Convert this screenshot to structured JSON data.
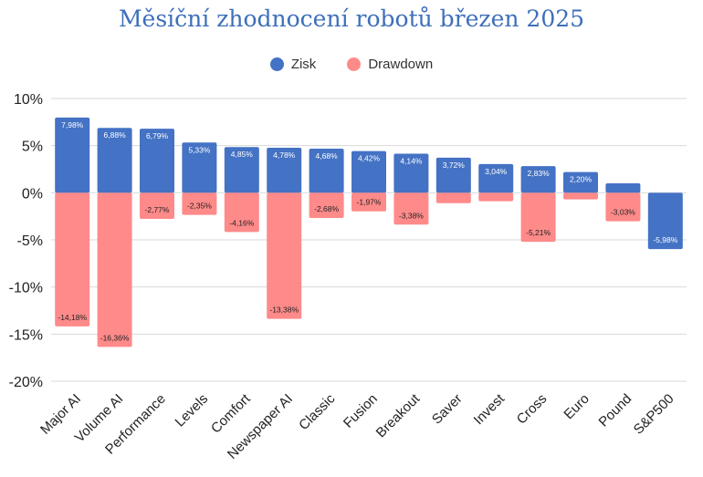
{
  "chart_data": {
    "type": "bar",
    "title": "Měsíční zhodnocení robotů březen 2025",
    "categories": [
      "Major AI",
      "Volume AI",
      "Performance",
      "Levels",
      "Comfort",
      "Newspaper AI",
      "Classic",
      "Fusion",
      "Breakout",
      "Saver",
      "Invest",
      "Cross",
      "Euro",
      "Pound",
      "S&P500"
    ],
    "series": [
      {
        "name": "Zisk",
        "color": "#4472c4",
        "values": [
          7.98,
          6.88,
          6.79,
          5.33,
          4.85,
          4.78,
          4.68,
          4.42,
          4.14,
          3.72,
          3.04,
          2.83,
          2.2,
          1.0,
          -5.98
        ],
        "labels": [
          "7,98%",
          "6,88%",
          "6,79%",
          "5,33%",
          "4,85%",
          "4,78%",
          "4,68%",
          "4,42%",
          "4,14%",
          "3,72%",
          "3,04%",
          "2,83%",
          "2,20%",
          "",
          "-5,98%"
        ]
      },
      {
        "name": "Drawdown",
        "color": "#ff8a8a",
        "values": [
          -14.18,
          -16.36,
          -2.77,
          -2.35,
          -4.16,
          -13.38,
          -2.68,
          -1.97,
          -3.38,
          -1.1,
          -0.9,
          -5.21,
          -0.7,
          -3.03,
          0
        ],
        "labels": [
          "-14,18%",
          "-16,36%",
          "-2,77%",
          "-2,35%",
          "-4,16%",
          "-13,38%",
          "-2,68%",
          "-1,97%",
          "-3,38%",
          "",
          "",
          "-5,21%",
          "",
          "-3,03%",
          ""
        ]
      }
    ],
    "ylim": [
      -20,
      10
    ],
    "yticks": [
      10,
      5,
      0,
      -5,
      -10,
      -15,
      -20
    ],
    "ytick_labels": [
      "10%",
      "5%",
      "0%",
      "-5%",
      "-10%",
      "-15%",
      "-20%"
    ],
    "grid": true,
    "legend_position": "top-center"
  }
}
